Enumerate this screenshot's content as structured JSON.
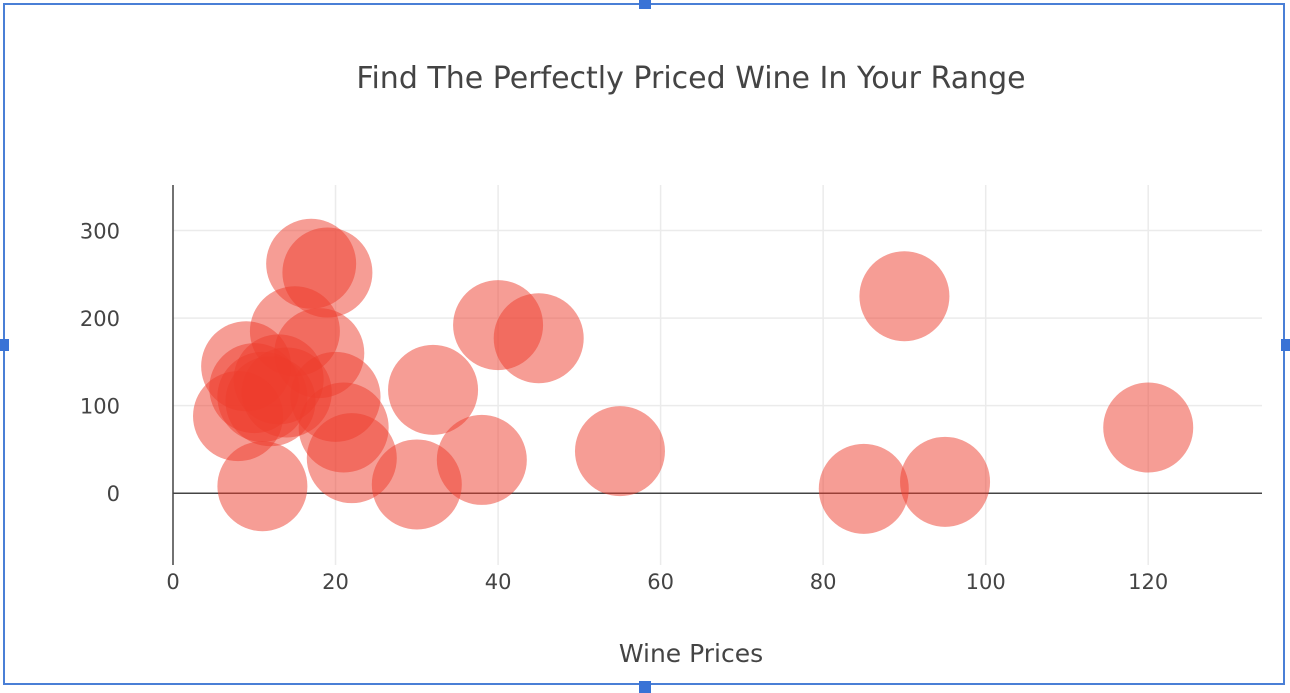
{
  "chart_data": {
    "type": "scatter",
    "title": "Find The Perfectly Priced Wine In Your Range",
    "xlabel": "Wine Prices",
    "ylabel": "",
    "xlim": [
      0,
      134
    ],
    "ylim": [
      -82,
      352
    ],
    "x_ticks": [
      "0",
      "20",
      "40",
      "60",
      "80",
      "100",
      "120"
    ],
    "y_ticks": [
      "0",
      "100",
      "200",
      "300"
    ],
    "grid": true,
    "marker_color": "#ee3b2b",
    "marker_opacity": 0.5,
    "series": [
      {
        "x": [
          17,
          19,
          15,
          18,
          9,
          10,
          13,
          11,
          12,
          14,
          20,
          21,
          22,
          8,
          11,
          30,
          32,
          38,
          40,
          45,
          55,
          85,
          90,
          95,
          120
        ],
        "y": [
          262,
          252,
          185,
          160,
          145,
          120,
          130,
          110,
          105,
          115,
          110,
          75,
          40,
          88,
          8,
          10,
          118,
          38,
          192,
          177,
          48,
          5,
          225,
          13,
          75
        ]
      }
    ]
  }
}
